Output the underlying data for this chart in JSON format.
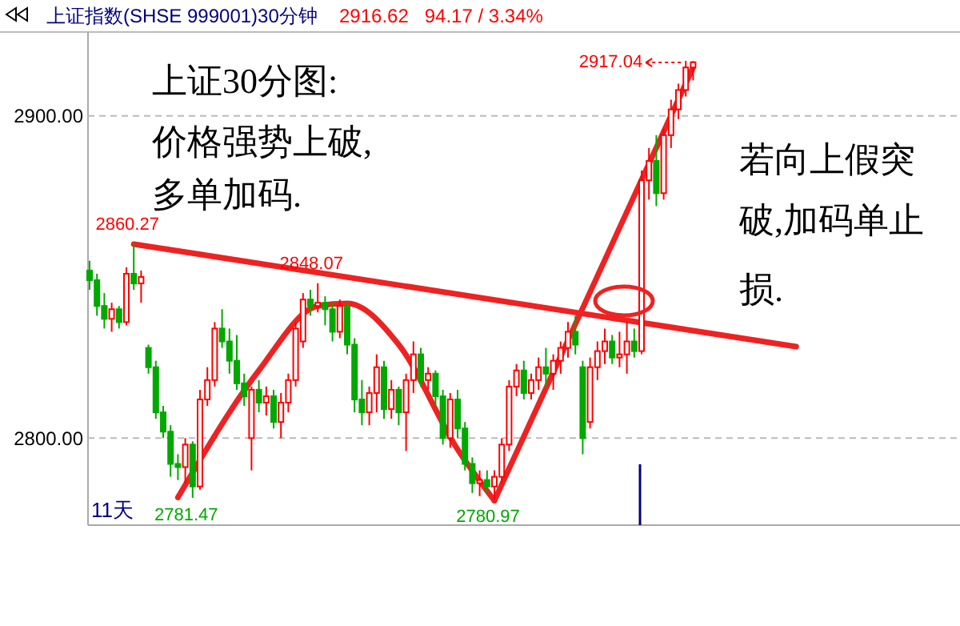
{
  "chart_data": {
    "type": "candlestick",
    "title": "上证指数(SHSE 999001)30分钟",
    "subtitle": "2916.62   94.17 / 3.34%",
    "categories": [
      null,
      null,
      null,
      null,
      null,
      null,
      null,
      null,
      null,
      null,
      null,
      null,
      null,
      null,
      null,
      null,
      null,
      null,
      null,
      null,
      null,
      null,
      null,
      null,
      null,
      null,
      null,
      null,
      null,
      null,
      null,
      null,
      null,
      null,
      null,
      null,
      null,
      null,
      null,
      null,
      null,
      null,
      null,
      null,
      null,
      null,
      null,
      null,
      null,
      null,
      null,
      null,
      null,
      null,
      null,
      null,
      null,
      null,
      null,
      null,
      null,
      null,
      null,
      null,
      null,
      null,
      null,
      null,
      null,
      null,
      null,
      null,
      null,
      null,
      null,
      null,
      null,
      null,
      null,
      null,
      null,
      null,
      null,
      null,
      null,
      null,
      null,
      null,
      null,
      null,
      null,
      null,
      null,
      null,
      null,
      null,
      null
    ],
    "ohlc": [
      [
        2852,
        2855,
        2846,
        2849
      ],
      [
        2849,
        2851,
        2838,
        2841
      ],
      [
        2841,
        2845,
        2834,
        2837
      ],
      [
        2837,
        2842,
        2833,
        2840
      ],
      [
        2840,
        2841,
        2834,
        2836
      ],
      [
        2836,
        2853,
        2835,
        2851
      ],
      [
        2851,
        2860.27,
        2846,
        2848
      ],
      [
        2848,
        2852,
        2842,
        2850
      ],
      [
        2828,
        2829,
        2820,
        2822
      ],
      [
        2822,
        2824,
        2806,
        2808
      ],
      [
        2808,
        2810,
        2800,
        2802
      ],
      [
        2802,
        2804,
        2788,
        2792
      ],
      [
        2792,
        2795,
        2787,
        2791
      ],
      [
        2791,
        2800,
        2786,
        2798
      ],
      [
        2798,
        2799,
        2781.47,
        2785
      ],
      [
        2785,
        2815,
        2784,
        2812
      ],
      [
        2812,
        2822,
        2810,
        2818
      ],
      [
        2818,
        2836,
        2816,
        2834
      ],
      [
        2834,
        2840,
        2828,
        2830
      ],
      [
        2830,
        2834,
        2820,
        2824
      ],
      [
        2824,
        2832,
        2815,
        2817
      ],
      [
        2817,
        2820,
        2810,
        2813
      ],
      [
        2800,
        2816,
        2790,
        2815
      ],
      [
        2815,
        2818,
        2808,
        2811
      ],
      [
        2811,
        2816,
        2807,
        2813
      ],
      [
        2813,
        2815,
        2803,
        2805
      ],
      [
        2805,
        2814,
        2800,
        2811
      ],
      [
        2811,
        2820,
        2808,
        2818
      ],
      [
        2818,
        2836,
        2816,
        2834
      ],
      [
        2830,
        2845,
        2828,
        2843
      ],
      [
        2843,
        2846,
        2838,
        2841
      ],
      [
        2841,
        2848.07,
        2839,
        2842
      ],
      [
        2842,
        2844,
        2835,
        2840
      ],
      [
        2840,
        2842,
        2830,
        2833
      ],
      [
        2833,
        2843,
        2831,
        2841
      ],
      [
        2841,
        2842,
        2826,
        2829
      ],
      [
        2829,
        2831,
        2808,
        2812
      ],
      [
        2812,
        2818,
        2804,
        2808
      ],
      [
        2808,
        2816,
        2804,
        2814
      ],
      [
        2814,
        2826,
        2808,
        2822
      ],
      [
        2822,
        2824,
        2806,
        2809
      ],
      [
        2809,
        2818,
        2806,
        2815
      ],
      [
        2815,
        2816,
        2804,
        2808
      ],
      [
        2808,
        2820,
        2796,
        2818
      ],
      [
        2818,
        2830,
        2814,
        2826
      ],
      [
        2826,
        2828,
        2816,
        2818
      ],
      [
        2818,
        2822,
        2815,
        2820
      ],
      [
        2820,
        2821,
        2810,
        2813
      ],
      [
        2813,
        2815,
        2798,
        2800
      ],
      [
        2800,
        2814,
        2797,
        2812
      ],
      [
        2812,
        2815,
        2800,
        2803
      ],
      [
        2803,
        2805,
        2790,
        2792
      ],
      [
        2792,
        2794,
        2783,
        2786
      ],
      [
        2786,
        2790,
        2782,
        2787
      ],
      [
        2787,
        2790,
        2783,
        2785
      ],
      [
        2785,
        2790,
        2780.97,
        2788
      ],
      [
        2788,
        2800,
        2786,
        2798
      ],
      [
        2798,
        2818,
        2796,
        2816
      ],
      [
        2816,
        2823,
        2813,
        2821
      ],
      [
        2821,
        2824,
        2812,
        2814
      ],
      [
        2814,
        2820,
        2812,
        2818
      ],
      [
        2818,
        2825,
        2815,
        2822
      ],
      [
        2822,
        2828,
        2816,
        2820
      ],
      [
        2820,
        2826,
        2815,
        2824
      ],
      [
        2824,
        2830,
        2820,
        2828
      ],
      [
        2828,
        2836,
        2825,
        2833
      ],
      [
        2833,
        2838,
        2826,
        2829
      ],
      [
        2822,
        2824,
        2795,
        2800
      ],
      [
        2805,
        2825,
        2803,
        2822
      ],
      [
        2822,
        2830,
        2818,
        2827
      ],
      [
        2827,
        2834,
        2823,
        2830
      ],
      [
        2830,
        2832,
        2823,
        2825
      ],
      [
        2825,
        2833,
        2822,
        2826
      ],
      [
        2826,
        2836,
        2820,
        2830
      ],
      [
        2830,
        2834,
        2825,
        2827
      ],
      [
        2827,
        2883,
        2826,
        2880
      ],
      [
        2880,
        2890,
        2874,
        2886
      ],
      [
        2886,
        2894,
        2872,
        2876
      ],
      [
        2876,
        2896,
        2874,
        2894
      ],
      [
        2894,
        2905,
        2890,
        2902
      ],
      [
        2902,
        2910,
        2899,
        2908
      ],
      [
        2908,
        2917.04,
        2906,
        2915
      ],
      [
        2915,
        2917,
        2911,
        2916.62
      ],
      null,
      null,
      null,
      null,
      null,
      null,
      null,
      null,
      null,
      null,
      null,
      null,
      null,
      null
    ],
    "colors": [
      "#00a800",
      "#00a800",
      "#00a800",
      "#ff0000",
      "#00a800",
      "#ff0000",
      "#00a800",
      "#ff0000",
      "#00a800",
      "#00a800",
      "#00a800",
      "#00a800",
      "#00a800",
      "#ff0000",
      "#00a800",
      "#ff0000",
      "#ff0000",
      "#ff0000",
      "#00a800",
      "#00a800",
      "#00a800",
      "#00a800",
      "#ff0000",
      "#00a800",
      "#ff0000",
      "#00a800",
      "#ff0000",
      "#ff0000",
      "#ff0000",
      "#ff0000",
      "#00a800",
      "#ff0000",
      "#00a800",
      "#00a800",
      "#ff0000",
      "#00a800",
      "#00a800",
      "#00a800",
      "#ff0000",
      "#ff0000",
      "#00a800",
      "#ff0000",
      "#00a800",
      "#ff0000",
      "#ff0000",
      "#00a800",
      "#ff0000",
      "#00a800",
      "#00a800",
      "#ff0000",
      "#00a800",
      "#00a800",
      "#00a800",
      "#ff0000",
      "#00a800",
      "#ff0000",
      "#ff0000",
      "#ff0000",
      "#ff0000",
      "#00a800",
      "#ff0000",
      "#ff0000",
      "#00a800",
      "#ff0000",
      "#ff0000",
      "#ff0000",
      "#00a800",
      "#00a800",
      "#ff0000",
      "#ff0000",
      "#ff0000",
      "#00a800",
      "#ff0000",
      "#ff0000",
      "#00a800",
      "#ff0000",
      "#ff0000",
      "#00a800",
      "#ff0000",
      "#ff0000",
      "#ff0000",
      "#ff0000",
      "#ff0000",
      null,
      null,
      null,
      null,
      null,
      null,
      null,
      null,
      null,
      null,
      null,
      null,
      null,
      null
    ],
    "series": [
      {
        "type": "line",
        "color": "#ee2222",
        "values": [
          null,
          null,
          null,
          null,
          null,
          null,
          2860.2,
          null,
          null,
          null,
          null,
          null,
          null,
          null,
          null,
          null,
          null,
          null,
          null,
          null,
          null,
          null,
          null,
          null,
          null,
          null,
          null,
          null,
          null,
          null,
          null,
          null,
          null,
          null,
          null,
          null,
          null,
          null,
          null,
          null,
          null,
          null,
          null,
          null,
          null,
          null,
          null,
          null,
          null,
          null,
          null,
          null,
          null,
          null,
          null,
          null,
          null,
          null,
          null,
          null,
          null,
          null,
          null,
          null,
          null,
          null,
          null,
          null,
          null,
          null,
          null,
          null,
          null,
          null,
          null,
          null,
          null,
          null,
          null,
          null,
          null,
          null,
          null,
          null,
          null,
          null,
          null,
          null,
          null,
          null,
          null,
          null,
          null,
          null,
          null,
          null,
          2828.4
        ]
      },
      {
        "type": "line",
        "color": "#ee2222",
        "values": [
          null,
          null,
          null,
          null,
          null,
          null,
          null,
          null,
          null,
          null,
          null,
          null,
          2781.6,
          null,
          null,
          null,
          null,
          null,
          null,
          null,
          null,
          null,
          null,
          2821,
          null,
          null,
          null,
          null,
          null,
          null,
          null,
          2841,
          null,
          null,
          null,
          2841.8,
          null,
          null,
          null,
          null,
          null,
          null,
          2829,
          null,
          null,
          null,
          null,
          null,
          null,
          null,
          2796.5,
          null,
          null,
          null,
          null,
          2780.6,
          null,
          null,
          null,
          null,
          null,
          null,
          null,
          null,
          null,
          null,
          null,
          null,
          null,
          null,
          null,
          null,
          null,
          null,
          null,
          null,
          null,
          null,
          null,
          null,
          null,
          null,
          null,
          null,
          null,
          null,
          null,
          null,
          null,
          null,
          null,
          null,
          null,
          null,
          null,
          null,
          null
        ]
      },
      {
        "type": "line",
        "color": "#ee2222",
        "values": [
          null,
          null,
          null,
          null,
          null,
          null,
          null,
          null,
          null,
          null,
          null,
          null,
          null,
          null,
          null,
          null,
          null,
          null,
          null,
          null,
          null,
          null,
          null,
          null,
          null,
          null,
          null,
          null,
          null,
          null,
          null,
          null,
          null,
          null,
          null,
          null,
          null,
          null,
          null,
          null,
          null,
          null,
          null,
          null,
          null,
          null,
          null,
          null,
          null,
          null,
          null,
          null,
          null,
          null,
          null,
          2780.6,
          null,
          null,
          null,
          null,
          null,
          null,
          null,
          null,
          null,
          null,
          null,
          null,
          null,
          null,
          null,
          null,
          null,
          null,
          null,
          null,
          null,
          null,
          null,
          null,
          null,
          null,
          2915,
          null,
          null,
          null,
          null,
          null,
          null,
          null,
          null,
          null,
          null,
          null,
          null,
          null,
          null
        ]
      }
    ],
    "ylim": [
      2773,
      2926
    ],
    "yticks": [
      {
        "value": 2800,
        "label": "2800.00"
      },
      {
        "value": 2900,
        "label": "2900.00"
      }
    ],
    "grid": "y",
    "annotations": [
      {
        "text": "2860.27",
        "y": 2860.27
      },
      {
        "text": "2848.07",
        "y": 2848.07
      },
      {
        "text": "2781.47",
        "y": 2781.47
      },
      {
        "text": "2780.97",
        "y": 2780.97
      },
      "2917.04",
      "11天",
      "上证30分图:",
      "价格强势上破,",
      "多单加码.",
      "若向上假突",
      "破,加码单止",
      "损."
    ]
  }
}
